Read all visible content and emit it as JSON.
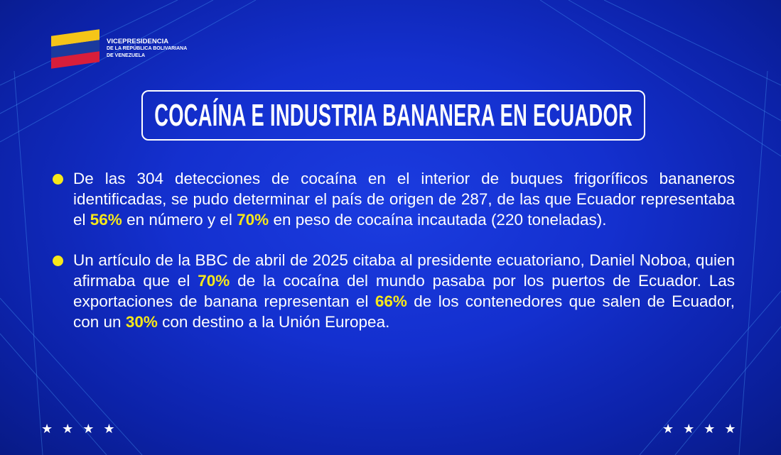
{
  "logo": {
    "line1": "VICEPRESIDENCIA",
    "line2": "DE LA REPÚBLICA BOLIVARIANA",
    "line3": "DE VENEZUELA"
  },
  "title": "COCAÍNA E INDUSTRIA BANANERA EN ECUADOR",
  "colors": {
    "background": "#1430cf",
    "highlight": "#f7e81a",
    "bullet": "#f7e81a"
  },
  "bullets": [
    {
      "segments": [
        {
          "text": "De las 304 detecciones de cocaína en el interior de buques frigoríficos bananeros identificadas, se pudo determinar el país de origen de 287, de las que Ecuador representaba el "
        },
        {
          "text": "56%",
          "highlight": true
        },
        {
          "text": " en número y el "
        },
        {
          "text": "70%",
          "highlight": true
        },
        {
          "text": " en peso de cocaína incautada (220 toneladas)."
        }
      ]
    },
    {
      "segments": [
        {
          "text": "Un artículo de la BBC de abril de 2025 citaba al presidente ecuatoriano, Daniel Noboa, quien afirmaba que el "
        },
        {
          "text": "70%",
          "highlight": true
        },
        {
          "text": " de la cocaína del mundo pasaba por los puertos de Ecuador. Las exportaciones de banana representan el "
        },
        {
          "text": "66%",
          "highlight": true
        },
        {
          "text": " de los contenedores que salen de Ecuador, con un "
        },
        {
          "text": "30%",
          "highlight": true
        },
        {
          "text": " con destino a la Unión Europea."
        }
      ]
    }
  ],
  "stars": {
    "left": "★★★★",
    "right": "★★★★"
  }
}
